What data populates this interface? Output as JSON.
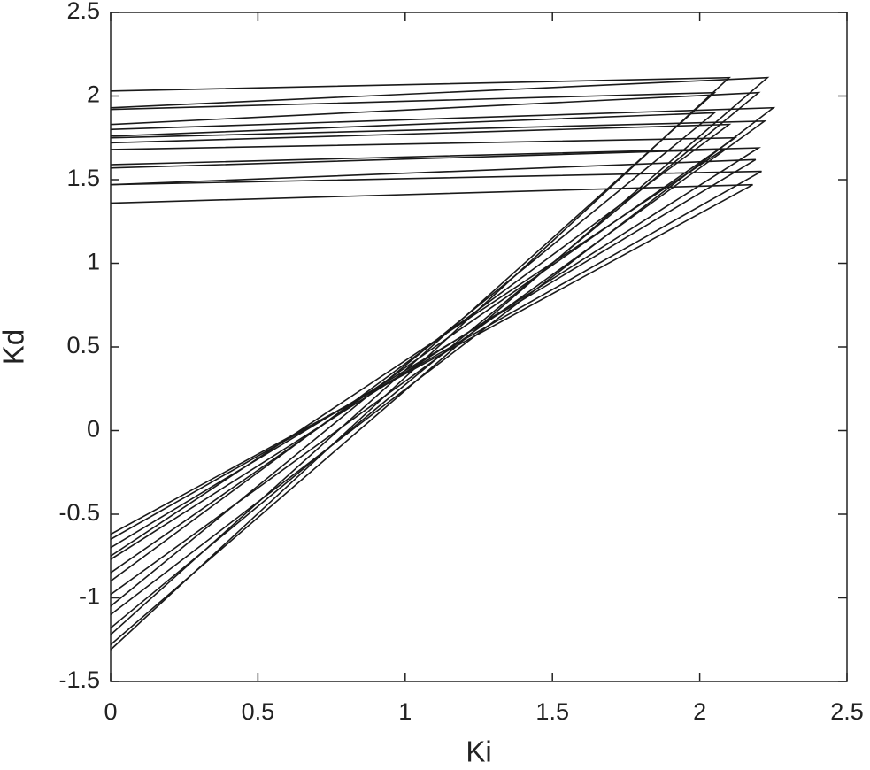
{
  "chart_data": {
    "type": "line",
    "x_label": "Ki",
    "y_label": "Kd",
    "color": "#1a1a1a",
    "xlim": [
      0,
      2.5
    ],
    "xticks": [
      0,
      0.5,
      1,
      1.5,
      2,
      2.5
    ],
    "ylim": [
      -1.5,
      2.5
    ],
    "yticks": [
      -1.5,
      -1,
      -0.5,
      0,
      0.5,
      1,
      1.5,
      2,
      2.5
    ],
    "series": [
      {
        "x": [
          0,
          2.1,
          0
        ],
        "values": [
          2.03,
          2.11,
          -1.31
        ]
      },
      {
        "x": [
          0,
          2.23,
          0
        ],
        "values": [
          1.93,
          2.11,
          -1.28
        ]
      },
      {
        "x": [
          0,
          2.05,
          0
        ],
        "values": [
          1.92,
          2.02,
          -1.22
        ]
      },
      {
        "x": [
          0,
          2.2,
          0
        ],
        "values": [
          1.83,
          2.02,
          -1.18
        ]
      },
      {
        "x": [
          0,
          2.25,
          0
        ],
        "values": [
          1.8,
          1.93,
          -1.1
        ]
      },
      {
        "x": [
          0,
          2.05,
          0
        ],
        "values": [
          1.76,
          1.9,
          -1.05
        ]
      },
      {
        "x": [
          0,
          2.22,
          0
        ],
        "values": [
          1.75,
          1.85,
          -0.98
        ]
      },
      {
        "x": [
          0,
          2.1,
          0
        ],
        "values": [
          1.72,
          1.83,
          -0.9
        ]
      },
      {
        "x": [
          0,
          2.12,
          0
        ],
        "values": [
          1.68,
          1.75,
          -0.85
        ]
      },
      {
        "x": [
          0,
          2.2,
          0
        ],
        "values": [
          1.59,
          1.69,
          -0.77
        ]
      },
      {
        "x": [
          0,
          2.08,
          0
        ],
        "values": [
          1.57,
          1.68,
          -0.75
        ]
      },
      {
        "x": [
          0,
          2.19,
          0
        ],
        "values": [
          1.47,
          1.62,
          -0.7
        ]
      },
      {
        "x": [
          0,
          2.21,
          0
        ],
        "values": [
          1.47,
          1.55,
          -0.65
        ]
      },
      {
        "x": [
          0,
          2.18,
          0
        ],
        "values": [
          1.36,
          1.47,
          -0.62
        ]
      }
    ]
  }
}
